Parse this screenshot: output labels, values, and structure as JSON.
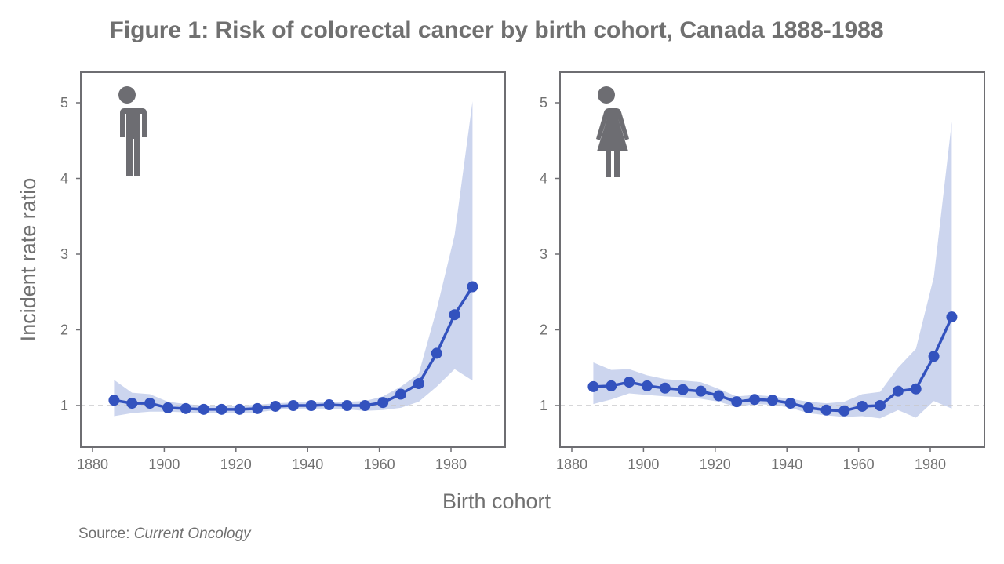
{
  "title": "Figure 1: Risk of colorectal cancer by birth cohort, Canada 1888-1988",
  "source_label": "Source: ",
  "source_name": "Current Oncology",
  "colors": {
    "line": "#3352be",
    "band": "#ccd5ee",
    "axis": "#6e6e72",
    "text": "#707070",
    "reference": "#c8c8cc",
    "icon": "#6d6d72"
  },
  "chart_data": [
    {
      "type": "line",
      "panel": "male",
      "icon": "male-figure-icon",
      "xlabel": "Birth cohort",
      "ylabel": "Incident rate ratio",
      "xlim": [
        1877,
        1995
      ],
      "ylim": [
        0.5,
        5.4
      ],
      "xticks": [
        1880,
        1900,
        1920,
        1940,
        1960,
        1980
      ],
      "yticks": [
        1,
        2,
        3,
        4,
        5
      ],
      "reference_line": 1,
      "x": [
        1886,
        1891,
        1896,
        1901,
        1906,
        1911,
        1916,
        1921,
        1926,
        1931,
        1936,
        1941,
        1946,
        1951,
        1956,
        1961,
        1966,
        1971,
        1976,
        1981,
        1986
      ],
      "values": [
        1.07,
        1.03,
        1.03,
        0.97,
        0.96,
        0.95,
        0.95,
        0.95,
        0.96,
        0.99,
        1.0,
        1.0,
        1.01,
        1.0,
        1.0,
        1.04,
        1.15,
        1.29,
        1.69,
        2.2,
        2.57
      ],
      "upper": [
        1.34,
        1.17,
        1.15,
        1.05,
        1.02,
        1.0,
        1.0,
        1.0,
        1.01,
        1.03,
        1.04,
        1.04,
        1.05,
        1.05,
        1.06,
        1.12,
        1.25,
        1.42,
        2.27,
        3.25,
        5.02
      ],
      "lower": [
        0.86,
        0.9,
        0.92,
        0.92,
        0.91,
        0.9,
        0.9,
        0.9,
        0.91,
        0.94,
        0.96,
        0.96,
        0.96,
        0.95,
        0.93,
        0.94,
        0.97,
        1.05,
        1.25,
        1.48,
        1.33
      ]
    },
    {
      "type": "line",
      "panel": "female",
      "icon": "female-figure-icon",
      "xlabel": "Birth cohort",
      "ylabel": "Incident rate ratio",
      "xlim": [
        1877,
        1995
      ],
      "ylim": [
        0.5,
        5.4
      ],
      "xticks": [
        1880,
        1900,
        1920,
        1940,
        1960,
        1980
      ],
      "yticks": [
        1,
        2,
        3,
        4,
        5
      ],
      "reference_line": 1,
      "x": [
        1886,
        1891,
        1896,
        1901,
        1906,
        1911,
        1916,
        1921,
        1926,
        1931,
        1936,
        1941,
        1946,
        1951,
        1956,
        1961,
        1966,
        1971,
        1976,
        1981,
        1986
      ],
      "values": [
        1.25,
        1.26,
        1.31,
        1.26,
        1.23,
        1.21,
        1.19,
        1.13,
        1.05,
        1.08,
        1.07,
        1.03,
        0.97,
        0.94,
        0.93,
        0.99,
        1.0,
        1.19,
        1.22,
        1.65,
        2.17
      ],
      "upper": [
        1.57,
        1.47,
        1.48,
        1.4,
        1.35,
        1.33,
        1.31,
        1.22,
        1.12,
        1.14,
        1.12,
        1.09,
        1.05,
        1.03,
        1.05,
        1.15,
        1.18,
        1.5,
        1.75,
        2.7,
        4.75
      ],
      "lower": [
        1.02,
        1.08,
        1.16,
        1.14,
        1.12,
        1.11,
        1.09,
        1.05,
        0.98,
        1.02,
        1.01,
        0.97,
        0.9,
        0.87,
        0.85,
        0.86,
        0.83,
        0.94,
        0.84,
        1.06,
        0.96
      ]
    }
  ]
}
